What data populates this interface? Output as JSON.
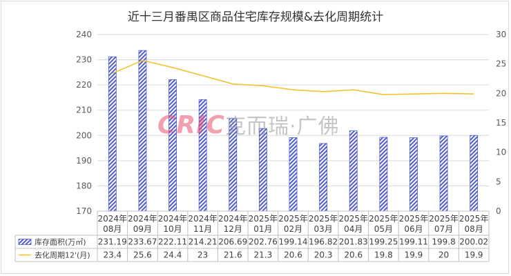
{
  "chart_data": {
    "type": "bar+line",
    "title": "近十三月番禺区商品住宅库存规模&去化周期统计",
    "watermark": "CRIC克而瑞·广佛",
    "categories": [
      "2024年\n08月",
      "2024年\n09月",
      "2024年\n10月",
      "2024年\n11月",
      "2024年\n12月",
      "2025年\n01月",
      "2025年\n02月",
      "2025年\n03月",
      "2025年\n04月",
      "2025年\n05月",
      "2025年\n06月",
      "2025年\n07月",
      "2025年\n08月"
    ],
    "series": [
      {
        "name": "库存面积(万㎡)",
        "type": "bar",
        "axis": "left",
        "color": "#4f5bd5",
        "values": [
          231.19,
          233.67,
          222.11,
          214.21,
          206.69,
          202.76,
          199.14,
          196.82,
          201.83,
          199.25,
          199.11,
          199.8,
          200.02
        ],
        "labels": [
          "231.19",
          "233.67",
          "222.11",
          "214.21",
          "206.69",
          "202.76",
          "199.14",
          "196.82",
          "201.83",
          "199.25",
          "199.11",
          "199.8",
          "200.02"
        ]
      },
      {
        "name": "去化周期12'(月)",
        "type": "line",
        "axis": "right",
        "color": "#f2c12e",
        "values": [
          23.4,
          25.6,
          24.4,
          23,
          21.6,
          21.3,
          20.6,
          20.3,
          20.6,
          19.8,
          19.9,
          20,
          19.9
        ],
        "labels": [
          "23.4",
          "25.6",
          "24.4",
          "23",
          "21.6",
          "21.3",
          "20.6",
          "20.3",
          "20.6",
          "19.8",
          "19.9",
          "20",
          "19.9"
        ]
      }
    ],
    "y_left": {
      "min": 170,
      "max": 240,
      "ticks": [
        "170",
        "180",
        "190",
        "200",
        "210",
        "220",
        "230",
        "240"
      ]
    },
    "y_right": {
      "min": 0,
      "max": 30,
      "ticks": [
        "0",
        "5",
        "10",
        "15",
        "20",
        "25",
        "30"
      ]
    },
    "grid": true,
    "legend": "data-table"
  }
}
